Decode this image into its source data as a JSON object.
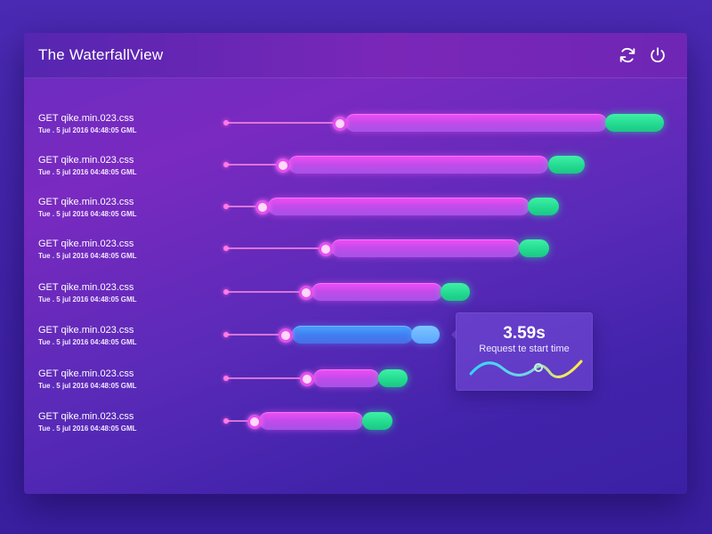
{
  "app": {
    "title": "The WaterfallView"
  },
  "header": {
    "refresh_icon": "refresh-icon",
    "power_icon": "power-icon"
  },
  "requests": [
    {
      "name": "GET qike.min.023.css",
      "date": "Tue . 5 jul  2016 04:48:05  GML",
      "state": "normal"
    },
    {
      "name": "GET qike.min.023.css",
      "date": "Tue . 5 jul  2016 04:48:05  GML",
      "state": "normal"
    },
    {
      "name": "GET qike.min.023.css",
      "date": "Tue . 5 jul  2016 04:48:05  GML",
      "state": "normal"
    },
    {
      "name": "GET qike.min.023.css",
      "date": "Tue . 5 jul  2016 04:48:05  GML",
      "state": "normal"
    },
    {
      "name": "GET qike.min.023.css",
      "date": "Tue . 5 jul  2016 04:48:05  GML",
      "state": "normal"
    },
    {
      "name": "GET qike.min.023.css",
      "date": "Tue . 5 jul  2016 04:48:05  GML",
      "state": "selected"
    },
    {
      "name": "GET qike.min.023.css",
      "date": "Tue . 5 jul  2016 04:48:05  GML",
      "state": "normal"
    },
    {
      "name": "GET qike.min.023.css",
      "date": "Tue . 5 jul  2016 04:48:05  GML",
      "state": "normal"
    }
  ],
  "tooltip": {
    "value": "3.59s",
    "label": "Request te start time"
  },
  "colors": {
    "main_bar": "#e84ef4",
    "end_bar": "#2fe39a",
    "selected_bar": "#4a8cff",
    "wave_start": "#2fd6ff",
    "wave_end": "#ffe94a"
  }
}
